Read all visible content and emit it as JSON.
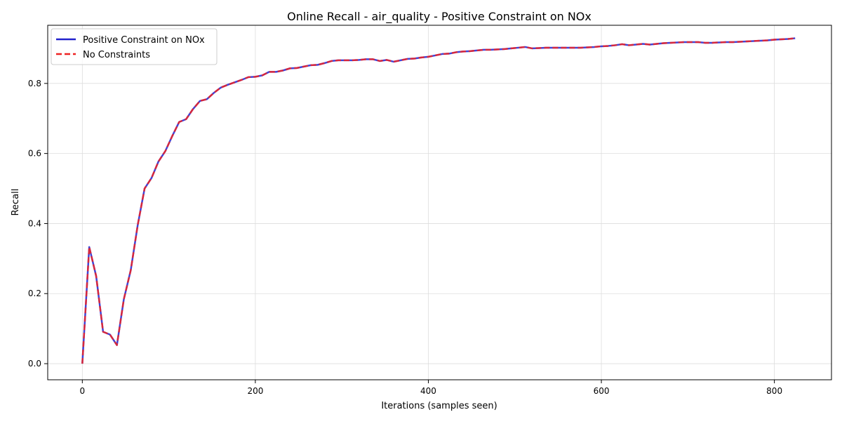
{
  "chart_data": {
    "type": "line",
    "title": "Online Recall - air_quality - Positive Constraint on NOx",
    "xlabel": "Iterations (samples seen)",
    "ylabel": "Recall",
    "xlim": [
      -40,
      866
    ],
    "ylim": [
      -0.046,
      0.966
    ],
    "xticks": [
      0,
      200,
      400,
      600,
      800
    ],
    "yticks": [
      0.0,
      0.2,
      0.4,
      0.6,
      0.8
    ],
    "ytick_labels": [
      "0.0",
      "0.2",
      "0.4",
      "0.6",
      "0.8"
    ],
    "grid": true,
    "legend_position": "top-left",
    "x": [
      0,
      8,
      16,
      24,
      32,
      40,
      48,
      56,
      64,
      72,
      80,
      88,
      96,
      104,
      112,
      120,
      128,
      136,
      144,
      152,
      160,
      168,
      176,
      184,
      192,
      200,
      208,
      216,
      224,
      232,
      240,
      248,
      256,
      264,
      272,
      280,
      288,
      296,
      304,
      312,
      320,
      328,
      336,
      344,
      352,
      360,
      368,
      376,
      384,
      392,
      400,
      408,
      416,
      424,
      432,
      440,
      448,
      456,
      464,
      472,
      480,
      488,
      496,
      504,
      512,
      520,
      528,
      536,
      544,
      552,
      560,
      568,
      576,
      584,
      592,
      600,
      608,
      616,
      624,
      632,
      640,
      648,
      656,
      664,
      672,
      680,
      688,
      696,
      704,
      712,
      720,
      728,
      736,
      744,
      752,
      760,
      768,
      776,
      784,
      792,
      800,
      808,
      816,
      824
    ],
    "series": [
      {
        "name": "Positive Constraint on NOx",
        "color": "#2222cc",
        "style": "solid",
        "values": [
          0.0,
          0.333,
          0.25,
          0.091,
          0.083,
          0.053,
          0.184,
          0.267,
          0.395,
          0.5,
          0.53,
          0.577,
          0.607,
          0.65,
          0.69,
          0.698,
          0.727,
          0.75,
          0.755,
          0.773,
          0.788,
          0.796,
          0.803,
          0.81,
          0.818,
          0.819,
          0.823,
          0.833,
          0.833,
          0.837,
          0.843,
          0.844,
          0.848,
          0.852,
          0.853,
          0.858,
          0.864,
          0.866,
          0.866,
          0.866,
          0.867,
          0.869,
          0.869,
          0.864,
          0.867,
          0.862,
          0.866,
          0.87,
          0.871,
          0.874,
          0.876,
          0.88,
          0.884,
          0.885,
          0.889,
          0.891,
          0.892,
          0.894,
          0.896,
          0.896,
          0.897,
          0.898,
          0.9,
          0.902,
          0.904,
          0.9,
          0.901,
          0.902,
          0.902,
          0.902,
          0.902,
          0.902,
          0.902,
          0.903,
          0.904,
          0.906,
          0.907,
          0.909,
          0.912,
          0.909,
          0.911,
          0.913,
          0.911,
          0.913,
          0.915,
          0.916,
          0.917,
          0.918,
          0.918,
          0.918,
          0.916,
          0.916,
          0.917,
          0.918,
          0.918,
          0.919,
          0.92,
          0.921,
          0.922,
          0.923,
          0.925,
          0.926,
          0.927,
          0.929
        ]
      },
      {
        "name": "No Constraints",
        "color": "#ee2222",
        "style": "dashed",
        "values": [
          0.0,
          0.333,
          0.25,
          0.091,
          0.083,
          0.053,
          0.184,
          0.267,
          0.395,
          0.5,
          0.53,
          0.577,
          0.607,
          0.65,
          0.69,
          0.698,
          0.727,
          0.75,
          0.755,
          0.773,
          0.788,
          0.796,
          0.803,
          0.81,
          0.818,
          0.819,
          0.823,
          0.833,
          0.833,
          0.837,
          0.843,
          0.844,
          0.848,
          0.852,
          0.853,
          0.858,
          0.864,
          0.866,
          0.866,
          0.866,
          0.867,
          0.869,
          0.869,
          0.864,
          0.867,
          0.862,
          0.866,
          0.87,
          0.871,
          0.874,
          0.876,
          0.88,
          0.884,
          0.885,
          0.889,
          0.891,
          0.892,
          0.894,
          0.896,
          0.896,
          0.897,
          0.898,
          0.9,
          0.902,
          0.904,
          0.9,
          0.901,
          0.902,
          0.902,
          0.902,
          0.902,
          0.902,
          0.902,
          0.903,
          0.904,
          0.906,
          0.907,
          0.909,
          0.912,
          0.909,
          0.911,
          0.913,
          0.911,
          0.913,
          0.915,
          0.916,
          0.917,
          0.918,
          0.918,
          0.918,
          0.916,
          0.916,
          0.917,
          0.918,
          0.918,
          0.919,
          0.92,
          0.921,
          0.922,
          0.923,
          0.925,
          0.926,
          0.927,
          0.929
        ]
      }
    ]
  }
}
